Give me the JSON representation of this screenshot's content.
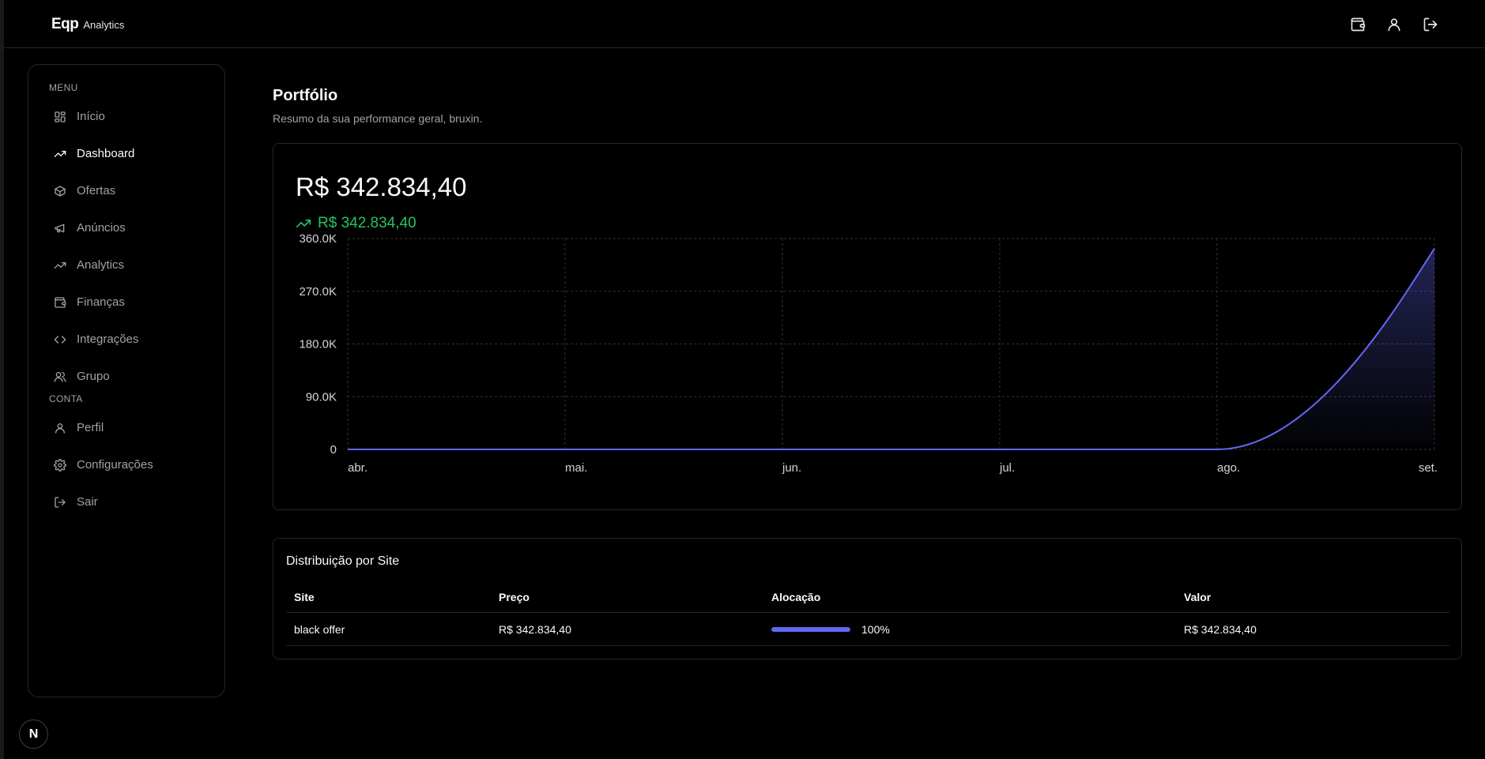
{
  "app": {
    "brand": "Eqp",
    "brand_sub": "Analytics"
  },
  "topbar": {
    "icons": [
      "wallet-icon",
      "user-icon",
      "logout-icon"
    ]
  },
  "sidebar": {
    "menu_label": "MENU",
    "items": [
      {
        "label": "Início",
        "icon": "grid-icon"
      },
      {
        "label": "Dashboard",
        "icon": "trending-up-icon",
        "active": true
      },
      {
        "label": "Ofertas",
        "icon": "box-icon"
      },
      {
        "label": "Anúncios",
        "icon": "megaphone-icon"
      },
      {
        "label": "Analytics",
        "icon": "trending-up-icon"
      },
      {
        "label": "Finanças",
        "icon": "wallet-icon"
      },
      {
        "label": "Integrações",
        "icon": "code-icon"
      },
      {
        "label": "Grupo",
        "icon": "users-icon"
      }
    ],
    "account_label": "CONTA",
    "account_items": [
      {
        "label": "Perfil",
        "icon": "user-icon"
      },
      {
        "label": "Configurações",
        "icon": "gear-icon"
      },
      {
        "label": "Sair",
        "icon": "logout-icon"
      }
    ]
  },
  "badge": "N",
  "page": {
    "title": "Portfólio",
    "subtitle": "Resumo da sua performance geral, bruxin."
  },
  "portfolio": {
    "total": "R$ 342.834,40",
    "change": "R$ 342.834,40",
    "accent": "#6366f1",
    "positive_color": "#22c55e"
  },
  "chart_data": {
    "type": "area",
    "x": [
      "abr.",
      "mai.",
      "jun.",
      "jul.",
      "ago.",
      "set."
    ],
    "values": [
      0,
      0,
      0,
      0,
      0,
      342834.4
    ],
    "yticks": [
      0,
      90000,
      180000,
      270000,
      360000
    ],
    "ytick_labels": [
      "0",
      "90.0K",
      "180.0K",
      "270.0K",
      "360.0K"
    ],
    "ylim": [
      0,
      360000
    ],
    "grid": true,
    "title": "",
    "xlabel": "",
    "ylabel": ""
  },
  "distribution": {
    "title": "Distribuição por Site",
    "headers": {
      "site": "Site",
      "price": "Preço",
      "allocation": "Alocação",
      "value": "Valor"
    },
    "rows": [
      {
        "site": "black offer",
        "price": "R$ 342.834,40",
        "allocation": "100%",
        "allocation_fraction": 1.0,
        "value": "R$ 342.834,40"
      }
    ]
  }
}
